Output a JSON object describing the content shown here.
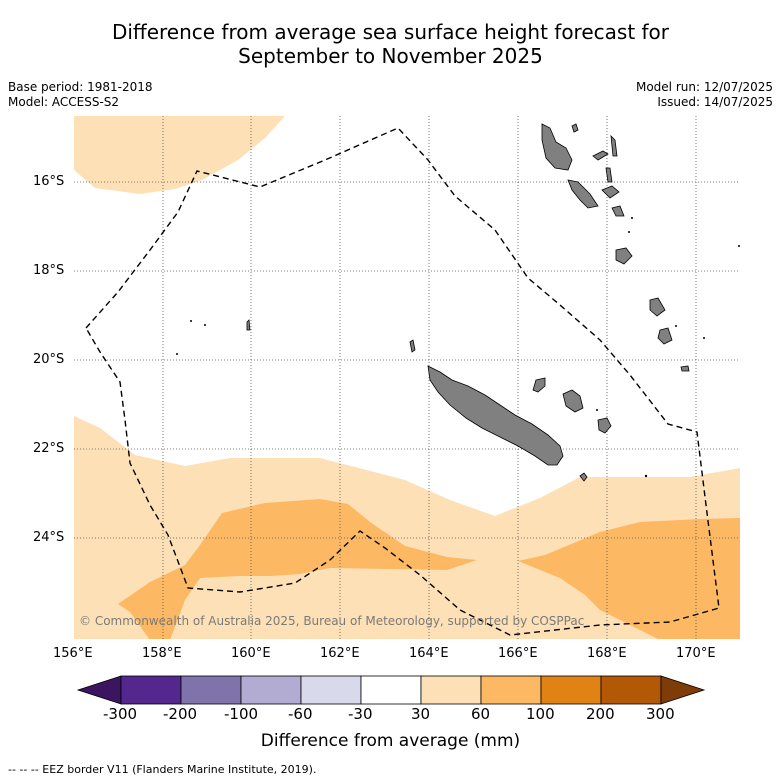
{
  "title_line1": "Difference from average sea surface height forecast for",
  "title_line2": "September to November 2025",
  "left_meta": [
    "Base period: 1981-2018",
    "Model: ACCESS-S2"
  ],
  "right_meta": [
    "Model run: 12/07/2025",
    "Issued: 14/07/2025"
  ],
  "lat_labels": [
    "16°S",
    "18°S",
    "20°S",
    "22°S",
    "24°S"
  ],
  "lon_labels": [
    "156°E",
    "158°E",
    "160°E",
    "162°E",
    "164°E",
    "166°E",
    "168°E",
    "170°E"
  ],
  "copyright": "© Commonwealth of Australia 2025, Bureau of Meteorology, supported by COSPPac",
  "colorbar": {
    "title": "Difference from average (mm)",
    "labels": [
      "-300",
      "-200",
      "-100",
      "-60",
      "-30",
      "30",
      "60",
      "100",
      "200",
      "300"
    ],
    "colors": [
      "#3b1560",
      "#54278f",
      "#8073ac",
      "#b2abd2",
      "#d8daeb",
      "#ffffff",
      "#fee0b6",
      "#fdb863",
      "#e08214",
      "#b35806",
      "#7f3b08"
    ]
  },
  "footnote": "-- -- -- EEZ border V11 (Flanders Marine Institute, 2019).",
  "land_color": "#808080"
}
